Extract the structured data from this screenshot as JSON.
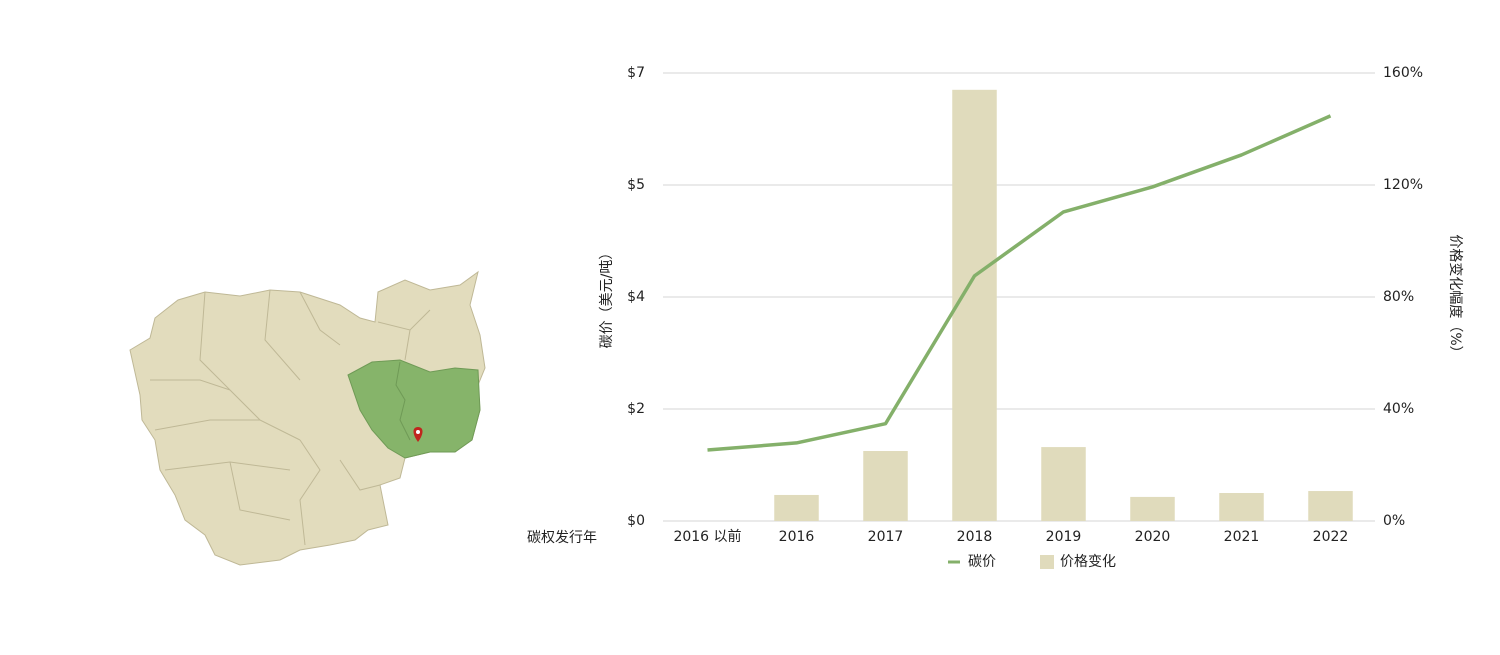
{
  "chart_data": {
    "type": "bar-line",
    "categories": [
      "2016 以前",
      "2016",
      "2017",
      "2018",
      "2019",
      "2020",
      "2021",
      "2022"
    ],
    "x_label": "碳权发行年",
    "y_label": "碳价（美元/吨）",
    "y2_label": "价格变化幅度（%）",
    "ylim": [
      0,
      7
    ],
    "yticks": [
      {
        "value": 0,
        "label": "$0"
      },
      {
        "value": 1.75,
        "label": "$2"
      },
      {
        "value": 3.5,
        "label": "$4"
      },
      {
        "value": 5.25,
        "label": "$5"
      },
      {
        "value": 7,
        "label": "$7"
      }
    ],
    "y2lim": [
      0,
      160
    ],
    "y2ticks": [
      {
        "value": 0,
        "label": "0%"
      },
      {
        "value": 40,
        "label": "40%"
      },
      {
        "value": 80,
        "label": "80%"
      },
      {
        "value": 120,
        "label": "120%"
      },
      {
        "value": 160,
        "label": "160%"
      }
    ],
    "grid": true,
    "series": [
      {
        "name": "碳价",
        "type": "line",
        "color": "#84b06a",
        "values": [
          1.11,
          1.22,
          1.52,
          3.83,
          4.83,
          5.22,
          5.72,
          6.33
        ]
      },
      {
        "name": "价格变化",
        "type": "bar",
        "axis": "y2",
        "color": "#e0dbbc",
        "values": [
          null,
          9.3,
          25,
          154,
          26.4,
          8.6,
          10,
          10.7
        ]
      }
    ]
  }
}
